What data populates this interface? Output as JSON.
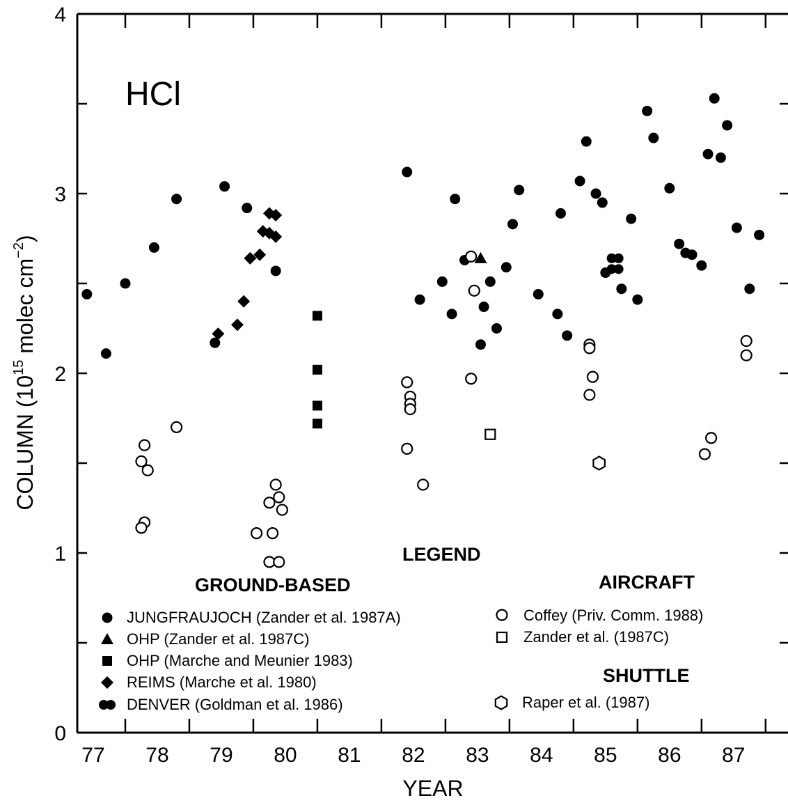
{
  "chart_data": {
    "type": "scatter",
    "panel_label": "HCl",
    "xlabel": "YEAR",
    "ylabel": "COLUMN (10^15 molec cm^-2)",
    "ylabel_parts": {
      "before": "COLUMN (10",
      "exp1": "15",
      "middle": " molec cm",
      "exp2": "−2",
      "after": ")"
    },
    "xlim": [
      76.75,
      87.85
    ],
    "ylim": [
      0,
      4
    ],
    "x_ticks": [
      "77",
      "78",
      "79",
      "80",
      "81",
      "82",
      "83",
      "84",
      "85",
      "86",
      "87"
    ],
    "y_ticks": [
      "0",
      "1",
      "2",
      "3",
      "4"
    ],
    "grid": false,
    "legend": {
      "title": "LEGEND",
      "groups": [
        {
          "title": "GROUND-BASED",
          "entries": [
            {
              "marker": "filled-circle",
              "label": "JUNGFRAUJOCH (Zander et al. 1987A)"
            },
            {
              "marker": "filled-triangle",
              "label": "OHP (Zander et al. 1987C)"
            },
            {
              "marker": "filled-square",
              "label": "OHP (Marche and Meunier 1983)"
            },
            {
              "marker": "filled-diamond",
              "label": "REIMS (Marche et al. 1980)"
            },
            {
              "marker": "double-circle",
              "label": "DENVER (Goldman et al. 1986)"
            }
          ]
        },
        {
          "title": "AIRCRAFT",
          "entries": [
            {
              "marker": "open-circle",
              "label": "Coffey (Priv. Comm. 1988)"
            },
            {
              "marker": "open-square",
              "label": "Zander et al. (1987C)"
            }
          ]
        },
        {
          "title": "SHUTTLE",
          "entries": [
            {
              "marker": "open-hexagon",
              "label": "Raper et al. (1987)"
            }
          ]
        }
      ]
    },
    "series": [
      {
        "name": "JUNGFRAUJOCH (Zander et al. 1987A)",
        "marker": "filled-circle",
        "points": [
          [
            76.9,
            2.44
          ],
          [
            77.2,
            2.11
          ],
          [
            77.5,
            2.5
          ],
          [
            77.95,
            2.7
          ],
          [
            78.3,
            2.97
          ],
          [
            78.9,
            2.17
          ],
          [
            79.05,
            3.04
          ],
          [
            79.4,
            2.92
          ],
          [
            79.85,
            2.57
          ],
          [
            81.9,
            3.12
          ],
          [
            82.1,
            2.41
          ],
          [
            82.45,
            2.51
          ],
          [
            82.6,
            2.33
          ],
          [
            82.65,
            2.97
          ],
          [
            82.8,
            2.63
          ],
          [
            83.05,
            2.16
          ],
          [
            83.1,
            2.37
          ],
          [
            83.2,
            2.51
          ],
          [
            83.3,
            2.25
          ],
          [
            83.45,
            2.59
          ],
          [
            83.55,
            2.83
          ],
          [
            83.65,
            3.02
          ],
          [
            83.95,
            2.44
          ],
          [
            84.25,
            2.33
          ],
          [
            84.3,
            2.89
          ],
          [
            84.4,
            2.21
          ],
          [
            84.6,
            3.07
          ],
          [
            84.7,
            3.29
          ],
          [
            84.85,
            3.0
          ],
          [
            84.95,
            2.95
          ],
          [
            85.0,
            2.56
          ],
          [
            85.25,
            2.47
          ],
          [
            85.4,
            2.86
          ],
          [
            85.5,
            2.41
          ],
          [
            85.65,
            3.46
          ],
          [
            85.75,
            3.31
          ],
          [
            86.0,
            3.03
          ],
          [
            86.15,
            2.72
          ],
          [
            86.25,
            2.67
          ],
          [
            86.35,
            2.66
          ],
          [
            86.5,
            2.6
          ],
          [
            86.6,
            3.22
          ],
          [
            86.7,
            3.53
          ],
          [
            86.8,
            3.2
          ],
          [
            86.9,
            3.38
          ],
          [
            87.05,
            2.81
          ],
          [
            87.25,
            2.47
          ],
          [
            87.4,
            2.77
          ]
        ]
      },
      {
        "name": "OHP (Zander et al. 1987C)",
        "marker": "filled-triangle",
        "points": [
          [
            83.05,
            2.64
          ]
        ]
      },
      {
        "name": "OHP (Marche and Meunier 1983)",
        "marker": "filled-square",
        "points": [
          [
            80.5,
            2.32
          ],
          [
            80.5,
            2.02
          ],
          [
            80.5,
            1.82
          ],
          [
            80.5,
            1.72
          ]
        ]
      },
      {
        "name": "REIMS (Marche et al. 1980)",
        "marker": "filled-diamond",
        "points": [
          [
            78.95,
            2.22
          ],
          [
            79.25,
            2.27
          ],
          [
            79.35,
            2.4
          ],
          [
            79.45,
            2.64
          ],
          [
            79.6,
            2.66
          ],
          [
            79.65,
            2.79
          ],
          [
            79.75,
            2.89
          ],
          [
            79.75,
            2.78
          ],
          [
            79.85,
            2.88
          ],
          [
            79.85,
            2.76
          ]
        ]
      },
      {
        "name": "DENVER (Goldman et al. 1986)",
        "marker": "double-circle",
        "points": [
          [
            85.15,
            2.64
          ],
          [
            85.15,
            2.58
          ]
        ]
      },
      {
        "name": "Coffey (Priv. Comm. 1988)",
        "marker": "open-circle",
        "points": [
          [
            77.8,
            1.6
          ],
          [
            77.75,
            1.51
          ],
          [
            77.85,
            1.46
          ],
          [
            77.8,
            1.17
          ],
          [
            77.75,
            1.14
          ],
          [
            78.3,
            1.7
          ],
          [
            79.55,
            1.11
          ],
          [
            79.75,
            1.28
          ],
          [
            79.8,
            1.11
          ],
          [
            79.85,
            1.38
          ],
          [
            79.9,
            1.31
          ],
          [
            79.95,
            1.24
          ],
          [
            79.75,
            0.95
          ],
          [
            79.9,
            0.95
          ],
          [
            81.9,
            1.95
          ],
          [
            81.9,
            1.58
          ],
          [
            81.95,
            1.87
          ],
          [
            81.95,
            1.83
          ],
          [
            81.95,
            1.8
          ],
          [
            82.15,
            1.38
          ],
          [
            82.9,
            2.65
          ],
          [
            82.95,
            2.46
          ],
          [
            82.9,
            1.97
          ],
          [
            84.75,
            2.16
          ],
          [
            84.75,
            2.14
          ],
          [
            84.8,
            1.98
          ],
          [
            84.75,
            1.88
          ],
          [
            86.55,
            1.55
          ],
          [
            86.65,
            1.64
          ],
          [
            87.2,
            2.18
          ],
          [
            87.2,
            2.1
          ]
        ]
      },
      {
        "name": "Zander et al. (1987C)",
        "marker": "open-square",
        "points": [
          [
            83.2,
            1.66
          ]
        ]
      },
      {
        "name": "Raper et al. (1987)",
        "marker": "open-hexagon",
        "points": [
          [
            84.9,
            1.5
          ]
        ]
      }
    ]
  }
}
